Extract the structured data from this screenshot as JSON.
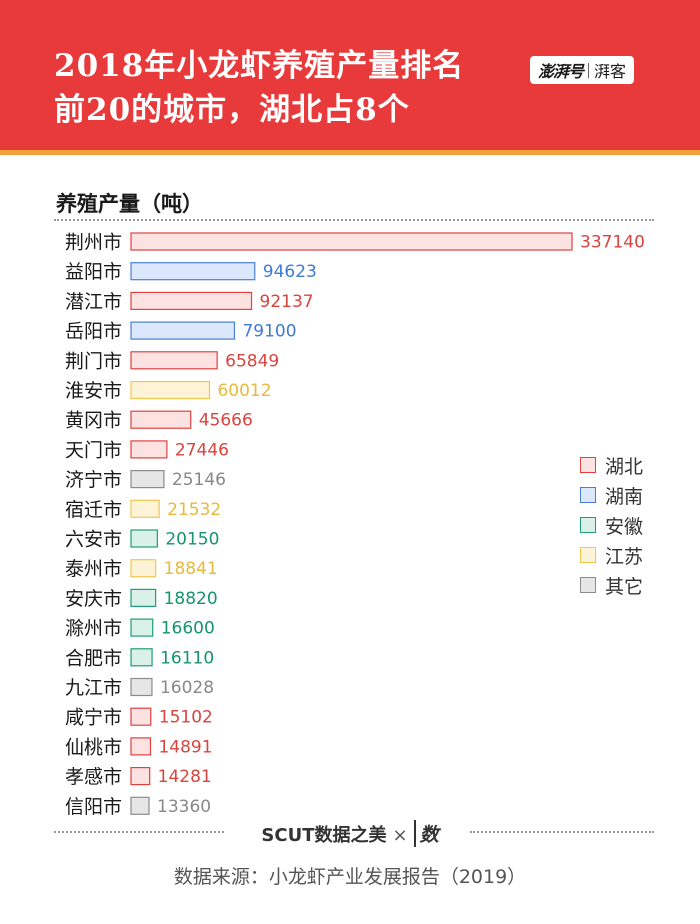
{
  "header": {
    "title_line1": "2018年小龙虾养殖产量排名",
    "title_line2": "前20的城市，湖北占8个",
    "logo_brand": "澎湃号",
    "logo_sub": "湃客"
  },
  "colors": {
    "header_bg": "#e8393b",
    "header_stripe": "#f3a13c",
    "湖北": {
      "fill": "#fde2e2",
      "stroke": "#e0413e",
      "text": "#d9443f"
    },
    "湖南": {
      "fill": "#dbe8fb",
      "stroke": "#4a7fd6",
      "text": "#3f7bd4"
    },
    "安徽": {
      "fill": "#d9f1e8",
      "stroke": "#1e9e74",
      "text": "#16956b"
    },
    "江苏": {
      "fill": "#fdf3d6",
      "stroke": "#f0c850",
      "text": "#e8b93c"
    },
    "其它": {
      "fill": "#e6e6e6",
      "stroke": "#8c8c8c",
      "text": "#888888"
    }
  },
  "chart_data": {
    "type": "bar",
    "orientation": "horizontal",
    "ylabel": "养殖产量（吨）",
    "categories": [
      "荆州市",
      "益阳市",
      "潜江市",
      "岳阳市",
      "荆门市",
      "淮安市",
      "黄冈市",
      "天门市",
      "济宁市",
      "宿迁市",
      "六安市",
      "泰州市",
      "安庆市",
      "滁州市",
      "合肥市",
      "九江市",
      "咸宁市",
      "仙桃市",
      "孝感市",
      "信阳市"
    ],
    "values": [
      337140,
      94623,
      92137,
      79100,
      65849,
      60012,
      45666,
      27446,
      25146,
      21532,
      20150,
      18841,
      18820,
      16600,
      16110,
      16028,
      15102,
      14891,
      14281,
      13360
    ],
    "groups": [
      "湖北",
      "湖南",
      "湖北",
      "湖南",
      "湖北",
      "江苏",
      "湖北",
      "湖北",
      "其它",
      "江苏",
      "安徽",
      "江苏",
      "安徽",
      "安徽",
      "安徽",
      "其它",
      "湖北",
      "湖北",
      "湖北",
      "其它"
    ],
    "legend": [
      "湖北",
      "湖南",
      "安徽",
      "江苏",
      "其它"
    ],
    "legend_position": "right",
    "grid": false
  },
  "footer": {
    "credit_main": "SCUT数据之美",
    "credit_x": "×",
    "credit_logo": "数",
    "source": "数据来源：小龙虾产业发展报告（2019）"
  }
}
